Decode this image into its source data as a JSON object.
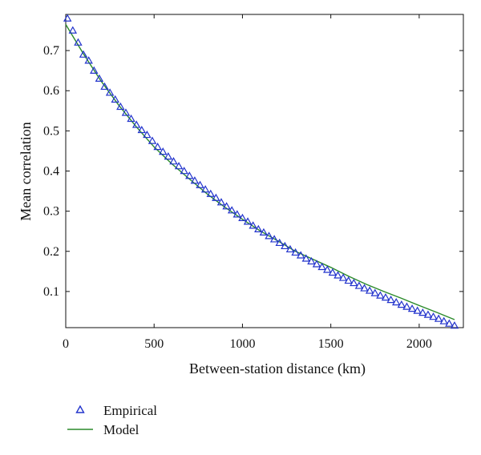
{
  "chart_data": {
    "type": "scatter",
    "xlabel": "Between-station distance (km)",
    "ylabel": "Mean correlation",
    "xlim": [
      0,
      2250
    ],
    "ylim": [
      0.01,
      0.79
    ],
    "xticks": [
      0,
      500,
      1000,
      1500,
      2000
    ],
    "yticks": [
      0.1,
      0.2,
      0.3,
      0.4,
      0.5,
      0.6,
      0.7
    ],
    "legend_position": "below-left",
    "grid": false,
    "series": [
      {
        "name": "Empirical",
        "marker": "triangle",
        "color": "#2233cc",
        "x": [
          10,
          40,
          70,
          100,
          130,
          160,
          190,
          220,
          250,
          280,
          310,
          340,
          370,
          400,
          430,
          460,
          490,
          520,
          550,
          580,
          610,
          640,
          670,
          700,
          730,
          760,
          790,
          820,
          850,
          880,
          910,
          940,
          970,
          1000,
          1030,
          1060,
          1090,
          1120,
          1150,
          1180,
          1210,
          1240,
          1270,
          1300,
          1330,
          1360,
          1390,
          1420,
          1450,
          1480,
          1510,
          1540,
          1570,
          1600,
          1630,
          1660,
          1690,
          1720,
          1750,
          1780,
          1810,
          1840,
          1870,
          1900,
          1930,
          1960,
          1990,
          2020,
          2050,
          2080,
          2110,
          2140,
          2170,
          2200
        ],
        "y": [
          0.78,
          0.75,
          0.72,
          0.69,
          0.675,
          0.65,
          0.63,
          0.61,
          0.595,
          0.578,
          0.56,
          0.545,
          0.53,
          0.515,
          0.502,
          0.49,
          0.475,
          0.46,
          0.448,
          0.436,
          0.424,
          0.412,
          0.4,
          0.388,
          0.376,
          0.365,
          0.354,
          0.343,
          0.333,
          0.322,
          0.312,
          0.302,
          0.292,
          0.283,
          0.274,
          0.264,
          0.255,
          0.247,
          0.238,
          0.23,
          0.221,
          0.213,
          0.205,
          0.197,
          0.19,
          0.182,
          0.175,
          0.168,
          0.161,
          0.154,
          0.147,
          0.14,
          0.134,
          0.127,
          0.121,
          0.114,
          0.108,
          0.102,
          0.096,
          0.09,
          0.085,
          0.079,
          0.073,
          0.067,
          0.062,
          0.057,
          0.052,
          0.047,
          0.042,
          0.037,
          0.032,
          0.026,
          0.02,
          0.015
        ]
      },
      {
        "name": "Model",
        "marker": "line",
        "color": "#2a8a2a",
        "x": [
          0,
          100,
          200,
          300,
          400,
          500,
          600,
          700,
          800,
          900,
          1000,
          1100,
          1200,
          1300,
          1400,
          1500,
          1600,
          1700,
          1800,
          1900,
          2000,
          2100,
          2200
        ],
        "y": [
          0.765,
          0.692,
          0.624,
          0.564,
          0.51,
          0.46,
          0.418,
          0.38,
          0.343,
          0.31,
          0.28,
          0.251,
          0.226,
          0.2,
          0.18,
          0.16,
          0.138,
          0.118,
          0.1,
          0.083,
          0.065,
          0.048,
          0.03
        ]
      }
    ]
  }
}
